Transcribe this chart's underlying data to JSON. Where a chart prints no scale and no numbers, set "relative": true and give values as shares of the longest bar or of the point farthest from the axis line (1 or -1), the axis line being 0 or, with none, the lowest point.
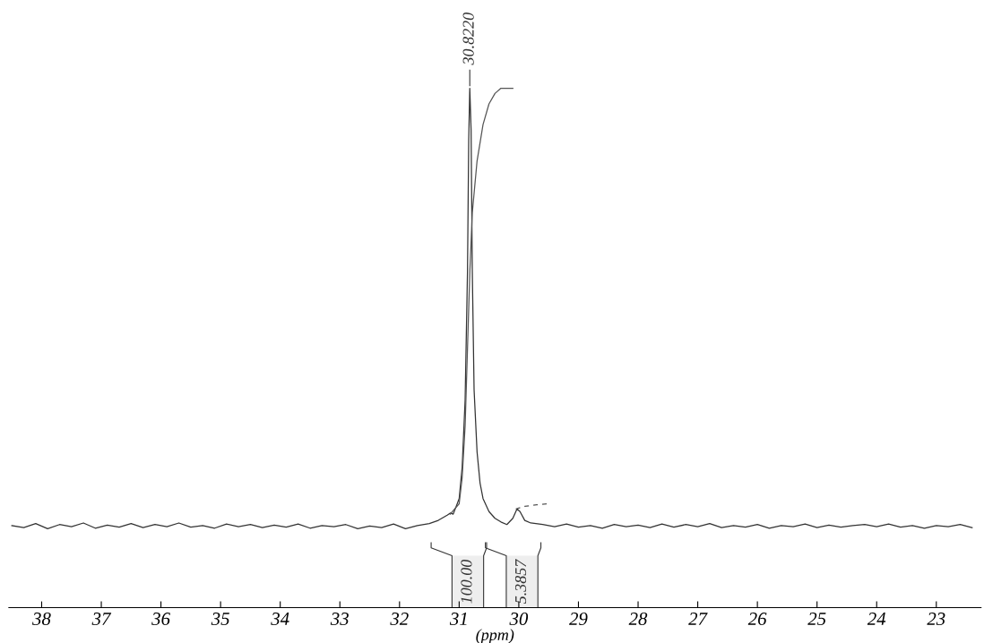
{
  "chart_data": {
    "type": "line",
    "relative": true,
    "xlabel": "(ppm)",
    "xlim": [
      38.55,
      22.25
    ],
    "xticks": [
      38,
      37,
      36,
      35,
      34,
      33,
      32,
      31,
      30,
      29,
      28,
      27,
      26,
      25,
      24,
      23
    ],
    "tick_labels": "x",
    "grid": false,
    "series": [
      {
        "color": "#333333",
        "line_style": "solid",
        "x": [
          38.5,
          38.3,
          38.1,
          37.9,
          37.7,
          37.5,
          37.3,
          37.1,
          36.9,
          36.7,
          36.5,
          36.3,
          36.1,
          35.9,
          35.7,
          35.5,
          35.3,
          35.1,
          34.9,
          34.7,
          34.5,
          34.3,
          34.1,
          33.9,
          33.7,
          33.5,
          33.3,
          33.1,
          32.9,
          32.7,
          32.5,
          32.3,
          32.1,
          31.9,
          31.7,
          31.5,
          31.35,
          31.2,
          31.15,
          31.1,
          31.0,
          30.95,
          30.9,
          30.86,
          30.84,
          30.822,
          30.8,
          30.78,
          30.75,
          30.7,
          30.65,
          30.6,
          30.5,
          30.4,
          30.3,
          30.2,
          30.1,
          30.03,
          29.98,
          29.9,
          29.8,
          29.6,
          29.4,
          29.2,
          29.0,
          28.8,
          28.6,
          28.4,
          28.2,
          28.0,
          27.8,
          27.6,
          27.4,
          27.2,
          27.0,
          26.8,
          26.6,
          26.4,
          26.2,
          26.0,
          25.8,
          25.6,
          25.4,
          25.2,
          25.0,
          24.8,
          24.6,
          24.4,
          24.2,
          24.0,
          23.8,
          23.6,
          23.4,
          23.2,
          23.0,
          22.8,
          22.6,
          22.4
        ],
        "values": [
          0.158,
          0.154,
          0.162,
          0.152,
          0.16,
          0.156,
          0.163,
          0.153,
          0.159,
          0.155,
          0.162,
          0.154,
          0.16,
          0.156,
          0.163,
          0.155,
          0.158,
          0.153,
          0.161,
          0.156,
          0.16,
          0.154,
          0.159,
          0.155,
          0.161,
          0.153,
          0.158,
          0.156,
          0.16,
          0.152,
          0.157,
          0.154,
          0.161,
          0.152,
          0.158,
          0.162,
          0.168,
          0.178,
          0.182,
          0.18,
          0.21,
          0.27,
          0.4,
          0.65,
          0.9,
          1.0,
          0.92,
          0.65,
          0.42,
          0.3,
          0.24,
          0.21,
          0.185,
          0.172,
          0.165,
          0.16,
          0.172,
          0.19,
          0.185,
          0.168,
          0.163,
          0.16,
          0.156,
          0.161,
          0.155,
          0.158,
          0.153,
          0.16,
          0.156,
          0.159,
          0.154,
          0.161,
          0.155,
          0.16,
          0.156,
          0.162,
          0.154,
          0.158,
          0.155,
          0.16,
          0.153,
          0.158,
          0.156,
          0.161,
          0.154,
          0.159,
          0.155,
          0.158,
          0.16,
          0.156,
          0.161,
          0.155,
          0.158,
          0.153,
          0.158,
          0.156,
          0.16,
          0.154
        ]
      },
      {
        "color": "#555555",
        "line_style": "solid",
        "x": [
          31.15,
          31.0,
          30.95,
          30.9,
          30.86,
          30.82,
          30.78,
          30.7,
          30.6,
          30.5,
          30.4,
          30.3,
          30.1
        ],
        "values": [
          0.18,
          0.2,
          0.25,
          0.35,
          0.5,
          0.65,
          0.76,
          0.86,
          0.93,
          0.97,
          0.99,
          1.0,
          1.0
        ]
      },
      {
        "color": "#555555",
        "line_style": "dashed",
        "x": [
          30.05,
          29.9,
          29.7,
          29.5
        ],
        "values": [
          0.19,
          0.195,
          0.198,
          0.2
        ]
      }
    ],
    "bands": [
      {
        "axis": "x",
        "from": 31.12,
        "to": 30.59,
        "label": "100.00",
        "color": "#eeeeee"
      },
      {
        "axis": "x",
        "from": 30.21,
        "to": 29.68,
        "label": "5.3857",
        "color": "#eeeeee"
      }
    ],
    "annotations": [
      {
        "text": "30.8220",
        "x": 30.822,
        "y": 1.0
      }
    ]
  }
}
